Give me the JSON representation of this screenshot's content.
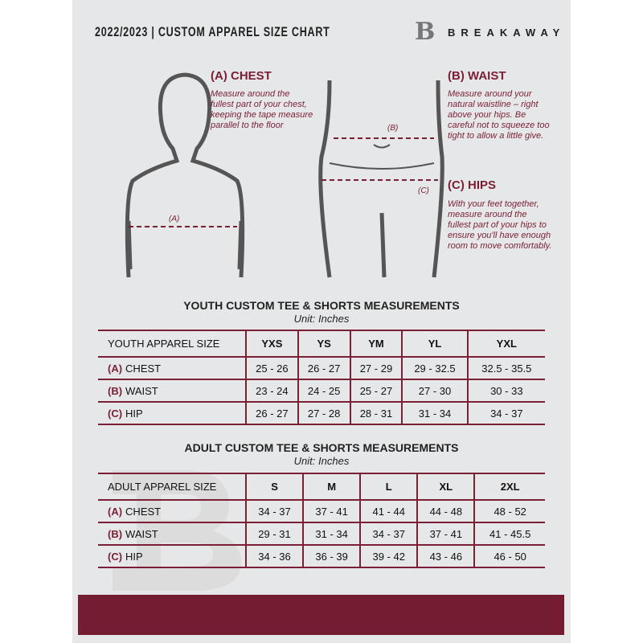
{
  "header": {
    "title": "2022/2023  |  CUSTOM APPAREL SIZE CHART",
    "brand": "BREAKAWAY",
    "logo_letter": "B"
  },
  "chest": {
    "heading": "(A) CHEST",
    "description": "Measure around the fullest part of your chest, keeping the tape measure parallel to the floor",
    "marker": "(A)"
  },
  "waist": {
    "heading": "(B) WAIST",
    "description": "Measure around your natural waistline – right above your hips. Be careful not to squeeze too tight to allow a little give.",
    "marker": "(B)"
  },
  "hips": {
    "heading": "(C) HIPS",
    "description": "With your feet together, measure around the fullest part of your hips to ensure you'll have enough room to move comfortably.",
    "marker": "(C)"
  },
  "youth": {
    "title": "YOUTH CUSTOM TEE & SHORTS MEASUREMENTS",
    "unit": "Unit: Inches",
    "header": "YOUTH APPAREL SIZE",
    "sizes": [
      "YXS",
      "YS",
      "YM",
      "YL",
      "YXL"
    ],
    "rows": [
      {
        "code": "(A)",
        "label": "CHEST",
        "values": [
          "25 - 26",
          "26 - 27",
          "27 - 29",
          "29 - 32.5",
          "32.5 - 35.5"
        ]
      },
      {
        "code": "(B)",
        "label": "WAIST",
        "values": [
          "23 - 24",
          "24 - 25",
          "25 - 27",
          "27 - 30",
          "30 - 33"
        ]
      },
      {
        "code": "(C)",
        "label": "HIP",
        "values": [
          "26 - 27",
          "27 - 28",
          "28 - 31",
          "31 - 34",
          "34 - 37"
        ]
      }
    ]
  },
  "adult": {
    "title": "ADULT CUSTOM TEE & SHORTS MEASUREMENTS",
    "unit": "Unit: Inches",
    "header": "ADULT APPAREL SIZE",
    "sizes": [
      "S",
      "M",
      "L",
      "XL",
      "2XL"
    ],
    "rows": [
      {
        "code": "(A)",
        "label": "CHEST",
        "values": [
          "34 - 37",
          "37 - 41",
          "41 - 44",
          "44 - 48",
          "48 - 52"
        ]
      },
      {
        "code": "(B)",
        "label": "WAIST",
        "values": [
          "29 - 31",
          "31 - 34",
          "34 - 37",
          "37 - 41",
          "41 - 45.5"
        ]
      },
      {
        "code": "(C)",
        "label": "HIP",
        "values": [
          "34 - 36",
          "36 - 39",
          "39 - 42",
          "43 - 46",
          "46 - 50"
        ]
      }
    ]
  },
  "colors": {
    "accent": "#7a1f35",
    "background": "#e6e7e8",
    "footer": "#731c32"
  }
}
